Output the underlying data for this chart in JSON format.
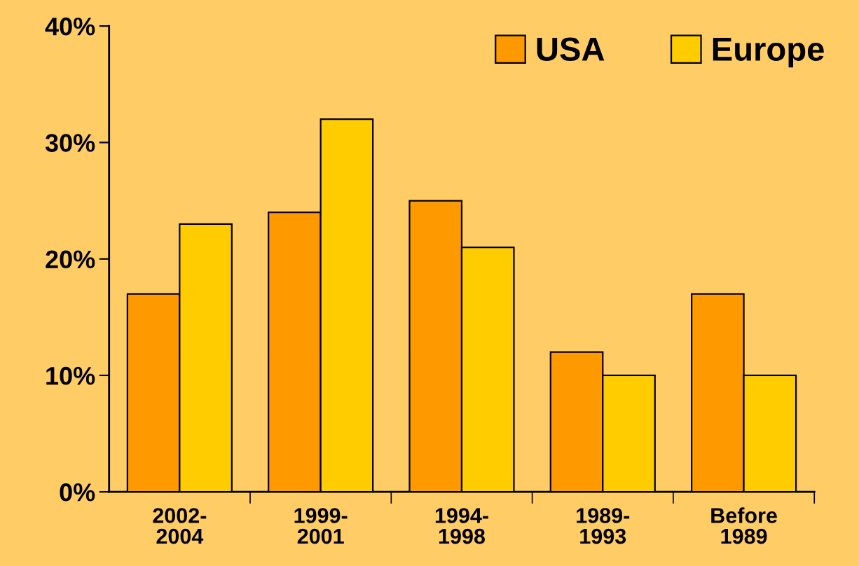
{
  "chart_data": {
    "type": "bar",
    "categories": [
      "2002-\n2004",
      "1999-\n2001",
      "1994-\n1998",
      "1989-\n1993",
      "Before\n1989"
    ],
    "series": [
      {
        "name": "USA",
        "color": "#ff9900",
        "values": [
          17,
          24,
          25,
          12,
          17
        ]
      },
      {
        "name": "Europe",
        "color": "#ffcc00",
        "values": [
          23,
          32,
          21,
          10,
          10
        ]
      }
    ],
    "ylim": [
      0,
      40
    ],
    "yticks": [
      {
        "value": 0,
        "label": "0%"
      },
      {
        "value": 10,
        "label": "10%"
      },
      {
        "value": 20,
        "label": "20%"
      },
      {
        "value": 30,
        "label": "30%"
      },
      {
        "value": 40,
        "label": "40%"
      }
    ],
    "legend": "top right"
  }
}
